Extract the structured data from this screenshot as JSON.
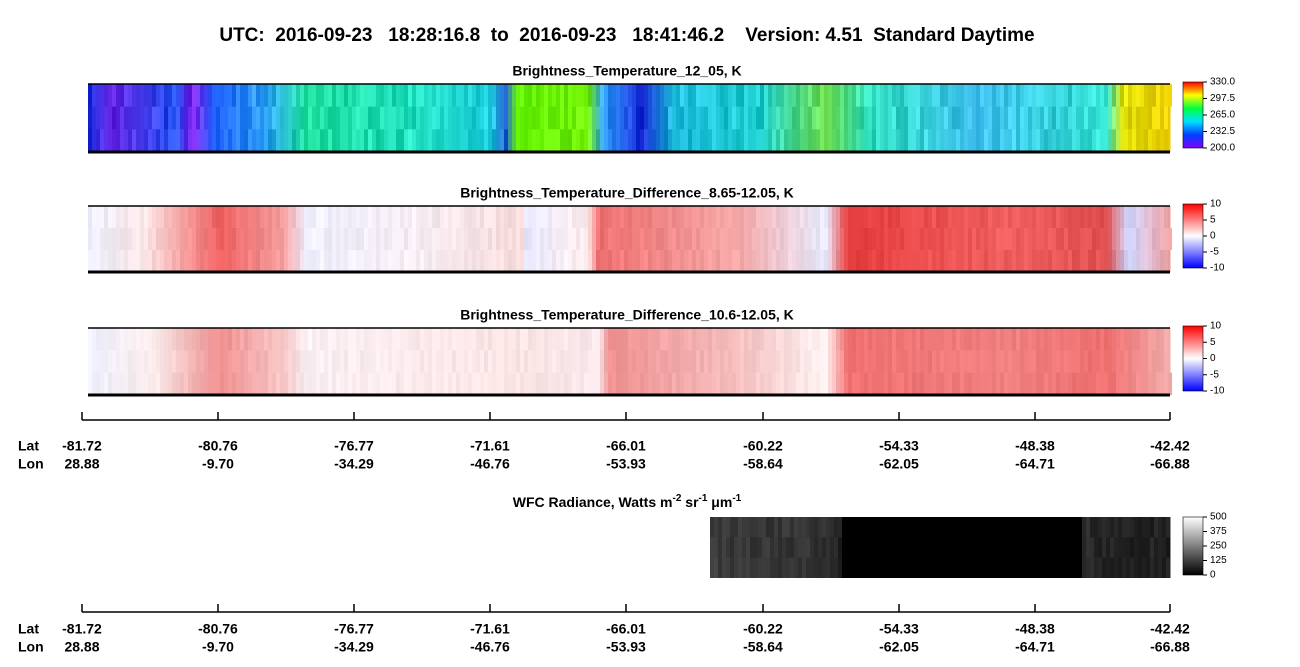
{
  "header": {
    "title": "UTC:  2016-09-23   18:28:16.8  to  2016-09-23   18:41:46.2    Version: 4.51  Standard Daytime"
  },
  "panels": [
    {
      "title": "Brightness_Temperature_12_05, K",
      "colorbar_ticks": [
        "330.0",
        "297.5",
        "265.0",
        "232.5",
        "200.0"
      ]
    },
    {
      "title": "Brightness_Temperature_Difference_8.65-12.05, K",
      "colorbar_ticks": [
        "10",
        "5",
        "0",
        "-5",
        "-10"
      ]
    },
    {
      "title": "Brightness_Temperature_Difference_10.6-12.05, K",
      "colorbar_ticks": [
        "10",
        "5",
        "0",
        "-5",
        "-10"
      ]
    },
    {
      "title_parts": [
        "WFC Radiance, Watts m",
        "-2",
        " sr",
        "-1",
        " μm",
        "-1"
      ],
      "colorbar_ticks": [
        "500",
        "375",
        "250",
        "125",
        "0"
      ]
    }
  ],
  "axes": [
    {
      "lat_label": "Lat",
      "lon_label": "Lon",
      "lat": [
        "-81.72",
        "-80.76",
        "-76.77",
        "-71.61",
        "-66.01",
        "-60.22",
        "-54.33",
        "-48.38",
        "-42.42"
      ],
      "lon": [
        "28.88",
        "-9.70",
        "-34.29",
        "-46.76",
        "-53.93",
        "-58.64",
        "-62.05",
        "-64.71",
        "-66.88"
      ]
    },
    {
      "lat_label": "Lat",
      "lon_label": "Lon",
      "lat": [
        "-81.72",
        "-80.76",
        "-76.77",
        "-71.61",
        "-66.01",
        "-60.22",
        "-54.33",
        "-48.38",
        "-42.42"
      ],
      "lon": [
        "28.88",
        "-9.70",
        "-34.29",
        "-46.76",
        "-53.93",
        "-58.64",
        "-62.05",
        "-64.71",
        "-66.88"
      ]
    }
  ]
}
